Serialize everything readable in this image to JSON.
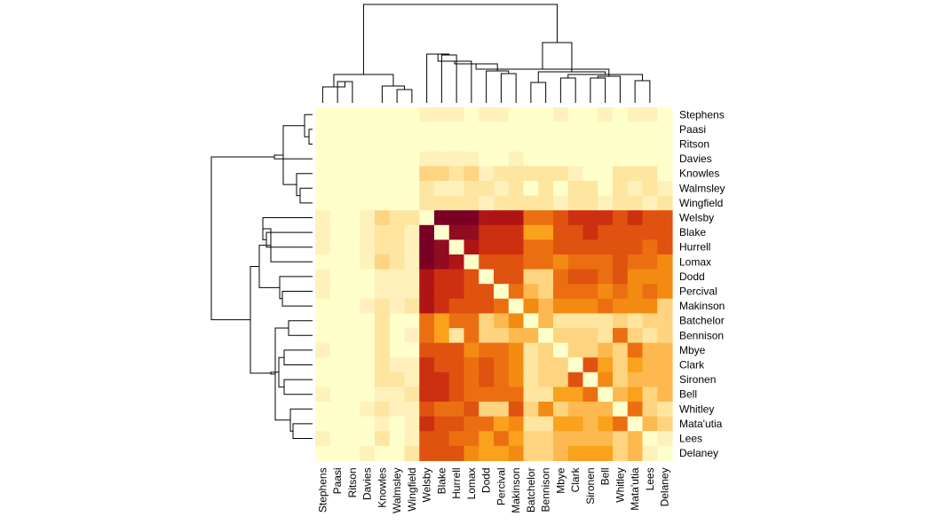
{
  "chart_data": {
    "type": "heatmap",
    "title": "",
    "labels": [
      "Stephens",
      "Paasi",
      "Ritson",
      "Davies",
      "Knowles",
      "Walmsley",
      "Wingfield",
      "Welsby",
      "Blake",
      "Hurrell",
      "Lomax",
      "Dodd",
      "Percival",
      "Makinson",
      "Batchelor",
      "Bennison",
      "Mbye",
      "Clark",
      "Sironen",
      "Bell",
      "Whitley",
      "Mata'utia",
      "Lees",
      "Delaney"
    ],
    "row_labels": [
      "Stephens",
      "Paasi",
      "Ritson",
      "Davies",
      "Knowles",
      "Walmsley",
      "Wingfield",
      "Welsby",
      "Blake",
      "Hurrell",
      "Lomax",
      "Dodd",
      "Percival",
      "Makinson",
      "Batchelor",
      "Bennison",
      "Mbye",
      "Clark",
      "Sironen",
      "Bell",
      "Whitley",
      "Mata'utia",
      "Lees",
      "Delaney"
    ],
    "col_labels": [
      "Stephens",
      "Paasi",
      "Ritson",
      "Davies",
      "Knowles",
      "Walmsley",
      "Wingfield",
      "Welsby",
      "Blake",
      "Hurrell",
      "Lomax",
      "Dodd",
      "Percival",
      "Makinson",
      "Batchelor",
      "Bennison",
      "Mbye",
      "Clark",
      "Sironen",
      "Bell",
      "Whitley",
      "Mata'utia",
      "Lees",
      "Delaney"
    ],
    "color_scale": [
      "#ffffcc",
      "#fff1bc",
      "#fee5a0",
      "#fed480",
      "#fdb94f",
      "#faa21c",
      "#f38b12",
      "#eb6f10",
      "#e05210",
      "#cc3010",
      "#b01515",
      "#900c20",
      "#7a0025"
    ],
    "values": [
      [
        0,
        0,
        0,
        0,
        0,
        0,
        0,
        1,
        1,
        1,
        0,
        1,
        1,
        0,
        0,
        0,
        1,
        0,
        0,
        1,
        0,
        1,
        1,
        0
      ],
      [
        0,
        0,
        0,
        0,
        0,
        0,
        0,
        0,
        0,
        0,
        0,
        0,
        0,
        0,
        0,
        0,
        0,
        0,
        0,
        0,
        0,
        0,
        0,
        0
      ],
      [
        0,
        0,
        0,
        0,
        0,
        0,
        0,
        0,
        0,
        0,
        0,
        0,
        0,
        0,
        0,
        0,
        0,
        0,
        0,
        0,
        0,
        0,
        0,
        0
      ],
      [
        0,
        0,
        0,
        0,
        0,
        0,
        0,
        1,
        1,
        1,
        1,
        0,
        0,
        1,
        0,
        0,
        0,
        0,
        0,
        0,
        0,
        0,
        0,
        0
      ],
      [
        0,
        0,
        0,
        0,
        0,
        0,
        0,
        3,
        3,
        2,
        3,
        1,
        2,
        2,
        2,
        2,
        2,
        1,
        0,
        0,
        2,
        2,
        2,
        0
      ],
      [
        0,
        0,
        0,
        0,
        0,
        0,
        0,
        2,
        1,
        1,
        2,
        2,
        1,
        2,
        0,
        2,
        0,
        2,
        2,
        0,
        2,
        1,
        2,
        1
      ],
      [
        0,
        0,
        0,
        0,
        0,
        0,
        0,
        2,
        2,
        2,
        2,
        1,
        2,
        2,
        2,
        2,
        1,
        2,
        2,
        1,
        2,
        2,
        1,
        2
      ],
      [
        1,
        0,
        0,
        1,
        3,
        2,
        2,
        0,
        12,
        12,
        12,
        10,
        10,
        10,
        7,
        7,
        8,
        9,
        9,
        9,
        8,
        9,
        8,
        8
      ],
      [
        1,
        0,
        0,
        1,
        2,
        2,
        1,
        12,
        0,
        11,
        11,
        9,
        9,
        9,
        5,
        5,
        8,
        8,
        9,
        8,
        8,
        8,
        8,
        8
      ],
      [
        1,
        0,
        0,
        1,
        2,
        2,
        1,
        12,
        11,
        0,
        10,
        9,
        9,
        9,
        7,
        7,
        8,
        8,
        8,
        8,
        8,
        8,
        7,
        8
      ],
      [
        0,
        0,
        0,
        1,
        3,
        2,
        1,
        12,
        11,
        10,
        0,
        8,
        8,
        8,
        7,
        7,
        6,
        7,
        7,
        7,
        8,
        7,
        7,
        6
      ],
      [
        1,
        0,
        0,
        0,
        1,
        1,
        1,
        10,
        9,
        9,
        8,
        0,
        8,
        8,
        3,
        3,
        7,
        8,
        8,
        7,
        8,
        6,
        6,
        6
      ],
      [
        1,
        0,
        0,
        0,
        1,
        1,
        1,
        10,
        9,
        9,
        8,
        8,
        0,
        7,
        4,
        3,
        7,
        7,
        7,
        6,
        7,
        6,
        7,
        6
      ],
      [
        0,
        0,
        0,
        1,
        2,
        1,
        2,
        10,
        9,
        8,
        8,
        8,
        7,
        0,
        6,
        4,
        6,
        6,
        6,
        7,
        6,
        6,
        6,
        3
      ],
      [
        0,
        0,
        0,
        0,
        2,
        0,
        0,
        7,
        5,
        7,
        7,
        3,
        4,
        6,
        0,
        4,
        2,
        2,
        2,
        2,
        3,
        2,
        3,
        3
      ],
      [
        0,
        0,
        0,
        0,
        2,
        0,
        1,
        7,
        5,
        2,
        7,
        3,
        3,
        4,
        4,
        0,
        3,
        3,
        3,
        2,
        7,
        3,
        2,
        3
      ],
      [
        1,
        0,
        0,
        0,
        2,
        0,
        0,
        8,
        8,
        8,
        6,
        7,
        7,
        6,
        2,
        3,
        0,
        3,
        3,
        4,
        3,
        7,
        4,
        4
      ],
      [
        0,
        0,
        0,
        0,
        2,
        1,
        1,
        9,
        8,
        8,
        7,
        8,
        7,
        6,
        2,
        3,
        3,
        0,
        8,
        5,
        3,
        5,
        4,
        4
      ],
      [
        0,
        0,
        0,
        0,
        2,
        2,
        1,
        9,
        9,
        8,
        7,
        8,
        7,
        6,
        2,
        3,
        3,
        8,
        0,
        6,
        3,
        4,
        4,
        4
      ],
      [
        1,
        0,
        0,
        0,
        1,
        1,
        2,
        9,
        9,
        8,
        7,
        7,
        7,
        7,
        2,
        2,
        5,
        5,
        7,
        0,
        4,
        5,
        3,
        4
      ],
      [
        0,
        0,
        0,
        1,
        2,
        1,
        1,
        8,
        7,
        7,
        8,
        3,
        3,
        8,
        3,
        6,
        3,
        4,
        4,
        4,
        0,
        7,
        3,
        2
      ],
      [
        0,
        0,
        0,
        0,
        1,
        0,
        1,
        9,
        8,
        8,
        7,
        7,
        5,
        6,
        2,
        2,
        5,
        5,
        4,
        5,
        7,
        0,
        4,
        3
      ],
      [
        1,
        0,
        0,
        0,
        2,
        0,
        1,
        8,
        8,
        7,
        7,
        5,
        7,
        5,
        3,
        3,
        4,
        4,
        4,
        4,
        3,
        4,
        0,
        1
      ],
      [
        0,
        0,
        0,
        1,
        0,
        0,
        2,
        8,
        8,
        8,
        6,
        5,
        5,
        6,
        3,
        3,
        4,
        5,
        5,
        5,
        3,
        4,
        1,
        0
      ]
    ]
  }
}
